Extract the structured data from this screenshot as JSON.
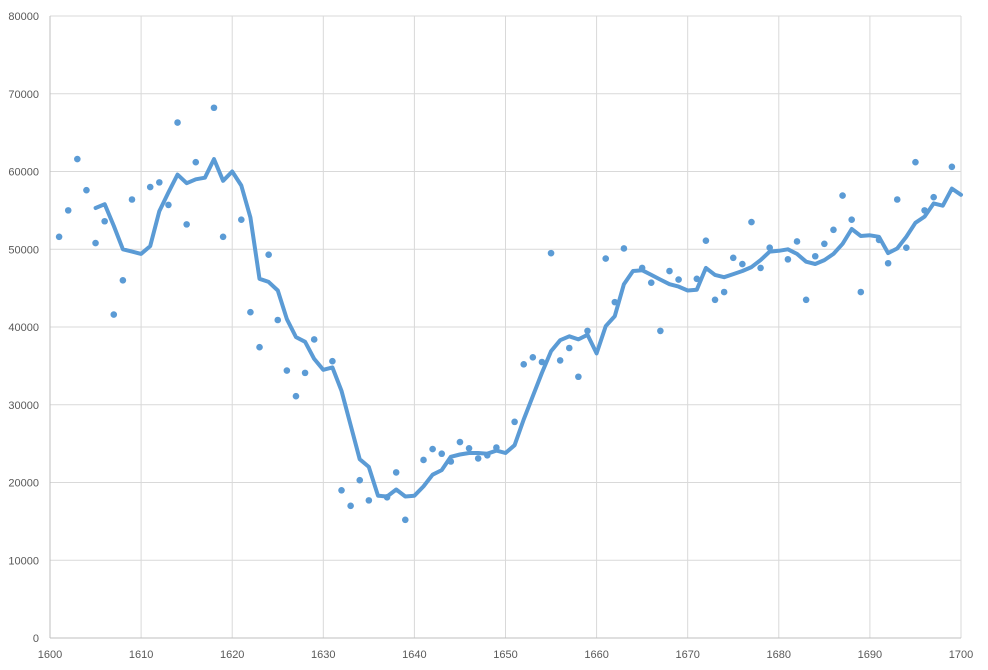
{
  "chart_data": {
    "type": "scatter",
    "title": "",
    "xlabel": "",
    "ylabel": "",
    "xlim": [
      1600,
      1700
    ],
    "ylim": [
      0,
      80000
    ],
    "x_ticks": [
      1600,
      1610,
      1620,
      1630,
      1640,
      1650,
      1660,
      1670,
      1680,
      1690,
      1700
    ],
    "y_ticks": [
      0,
      10000,
      20000,
      30000,
      40000,
      50000,
      60000,
      70000,
      80000
    ],
    "grid": true,
    "legend": "none",
    "series": [
      {
        "kind": "scatter",
        "color": "#5b9bd5",
        "x": [
          1601,
          1602,
          1603,
          1604,
          1605,
          1606,
          1607,
          1608,
          1609,
          1611,
          1612,
          1613,
          1614,
          1615,
          1616,
          1618,
          1619,
          1621,
          1622,
          1623,
          1624,
          1625,
          1626,
          1627,
          1628,
          1629,
          1631,
          1632,
          1633,
          1634,
          1635,
          1637,
          1638,
          1639,
          1641,
          1642,
          1643,
          1644,
          1645,
          1646,
          1647,
          1648,
          1649,
          1651,
          1652,
          1653,
          1654,
          1655,
          1656,
          1657,
          1658,
          1659,
          1661,
          1662,
          1663,
          1665,
          1666,
          1667,
          1668,
          1669,
          1671,
          1672,
          1673,
          1674,
          1675,
          1676,
          1677,
          1678,
          1679,
          1681,
          1682,
          1683,
          1684,
          1685,
          1686,
          1687,
          1688,
          1689,
          1691,
          1692,
          1693,
          1694,
          1695,
          1696,
          1697,
          1699
        ],
        "values": [
          51600,
          55000,
          61600,
          57600,
          50800,
          53600,
          41600,
          46000,
          56400,
          58000,
          58600,
          55700,
          66300,
          53200,
          61200,
          68200,
          51600,
          53800,
          41900,
          37400,
          49300,
          40900,
          34400,
          31100,
          34100,
          38400,
          35600,
          19000,
          17000,
          20300,
          17700,
          18100,
          21300,
          15200,
          22900,
          24300,
          23700,
          22700,
          25200,
          24400,
          23100,
          23500,
          24500,
          27800,
          35200,
          36100,
          35500,
          49500,
          35700,
          37300,
          33600,
          39500,
          48800,
          43200,
          50100,
          47600,
          45700,
          39500,
          47200,
          46100,
          46200,
          51100,
          43500,
          44500,
          48900,
          48100,
          53500,
          47600,
          50200,
          48700,
          51000,
          43500,
          49100,
          50700,
          52500,
          56900,
          53800,
          44500,
          51200,
          48200,
          56400,
          50200,
          61200,
          55000,
          56700,
          60600
        ]
      },
      {
        "kind": "line",
        "color": "#5b9bd5",
        "x": [
          1605,
          1606,
          1607,
          1608,
          1609,
          1610,
          1611,
          1612,
          1613,
          1614,
          1615,
          1616,
          1617,
          1618,
          1619,
          1620,
          1621,
          1622,
          1623,
          1624,
          1625,
          1626,
          1627,
          1628,
          1629,
          1630,
          1631,
          1632,
          1633,
          1634,
          1635,
          1636,
          1637,
          1638,
          1639,
          1640,
          1641,
          1642,
          1643,
          1644,
          1645,
          1646,
          1647,
          1648,
          1649,
          1650,
          1651,
          1652,
          1653,
          1654,
          1655,
          1656,
          1657,
          1658,
          1659,
          1660,
          1661,
          1662,
          1663,
          1664,
          1665,
          1666,
          1667,
          1668,
          1669,
          1670,
          1671,
          1672,
          1673,
          1674,
          1675,
          1676,
          1677,
          1678,
          1679,
          1680,
          1681,
          1682,
          1683,
          1684,
          1685,
          1686,
          1687,
          1688,
          1689,
          1690,
          1691,
          1692,
          1693,
          1694,
          1695,
          1696,
          1697,
          1698,
          1699,
          1700
        ],
        "values": [
          55300,
          55800,
          53000,
          50000,
          49700,
          49400,
          50400,
          54900,
          57300,
          59600,
          58500,
          59000,
          59200,
          61600,
          58800,
          60000,
          58200,
          54100,
          46200,
          45800,
          44700,
          41000,
          38700,
          38100,
          35900,
          34500,
          34800,
          31800,
          27400,
          23000,
          22000,
          18300,
          18200,
          19100,
          18200,
          18300,
          19500,
          21000,
          21600,
          23300,
          23600,
          23800,
          23800,
          23700,
          24100,
          23800,
          24800,
          28100,
          31100,
          34100,
          36900,
          38300,
          38800,
          38400,
          39000,
          36600,
          40100,
          41400,
          45500,
          47200,
          47300,
          46700,
          46100,
          45500,
          45200,
          44700,
          44800,
          47600,
          46700,
          46400,
          46800,
          47200,
          47700,
          48600,
          49700,
          49800,
          50000,
          49400,
          48400,
          48100,
          48600,
          49400,
          50700,
          52600,
          51700,
          51800,
          51600,
          49500,
          50100,
          51600,
          53400,
          54200,
          55900,
          55600,
          57800,
          57000
        ]
      }
    ]
  }
}
